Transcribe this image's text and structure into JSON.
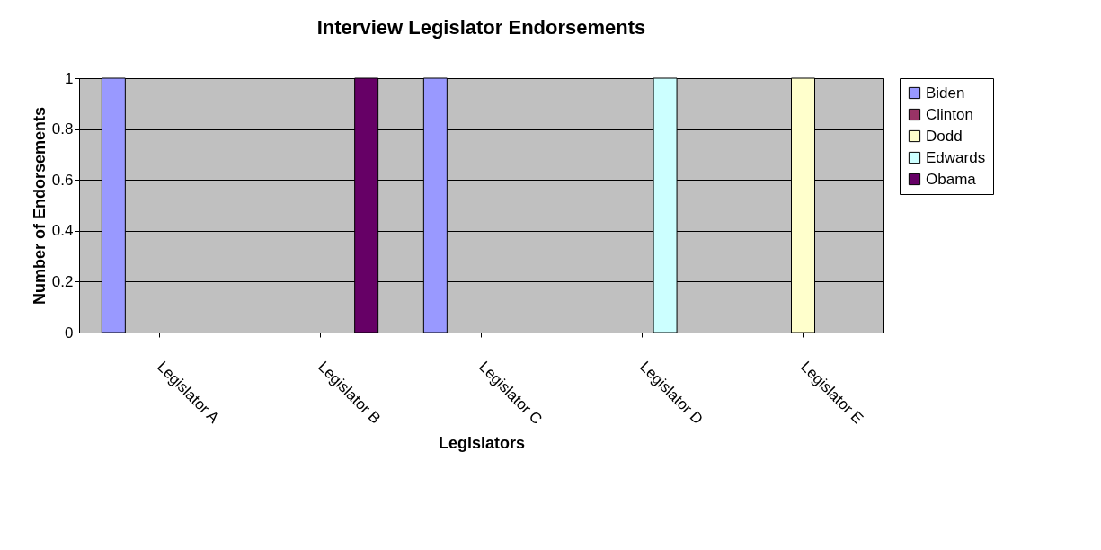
{
  "chart_data": {
    "type": "bar",
    "title": "Interview Legislator Endorsements",
    "xlabel": "Legislators",
    "ylabel": "Number of Endorsements",
    "categories": [
      "Legislator A",
      "Legislator B",
      "Legislator C",
      "Legislator D",
      "Legislator E"
    ],
    "series": [
      {
        "name": "Biden",
        "color": "#9999ff",
        "values": [
          1,
          0,
          1,
          0,
          0
        ]
      },
      {
        "name": "Clinton",
        "color": "#993366",
        "values": [
          0,
          0,
          0,
          0,
          0
        ]
      },
      {
        "name": "Dodd",
        "color": "#ffffcc",
        "values": [
          0,
          0,
          0,
          0,
          1
        ]
      },
      {
        "name": "Edwards",
        "color": "#ccffff",
        "values": [
          0,
          0,
          0,
          1,
          0
        ]
      },
      {
        "name": "Obama",
        "color": "#660066",
        "values": [
          0,
          1,
          0,
          0,
          0
        ]
      }
    ],
    "ylim": [
      0,
      1
    ],
    "yticks": [
      0,
      0.2,
      0.4,
      0.6,
      0.8,
      1
    ],
    "grid": "y",
    "legend": "right"
  }
}
